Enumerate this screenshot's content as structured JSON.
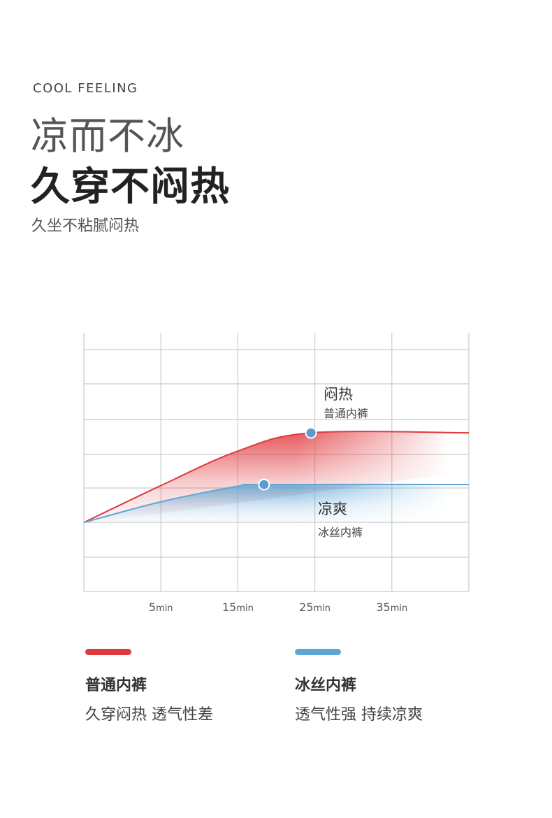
{
  "header": {
    "eyebrow": "COOL FEELING",
    "title_line1": "凉而不冰",
    "title_line2": "久穿不闷热",
    "subtitle": "久坐不粘腻闷热"
  },
  "chart_data": {
    "type": "area",
    "x_ticks": [
      {
        "value": 5,
        "num": "5",
        "unit": "min"
      },
      {
        "value": 15,
        "num": "15",
        "unit": "min"
      },
      {
        "value": 25,
        "num": "25",
        "unit": "min"
      },
      {
        "value": 35,
        "num": "35",
        "unit": "min"
      }
    ],
    "xlim": [
      -5,
      45
    ],
    "ylim": [
      0,
      7.5
    ],
    "grid": true,
    "series": [
      {
        "name": "普通内裤",
        "color": "#e0393e",
        "x": [
          -5,
          5,
          15,
          24.5,
          45
        ],
        "y": [
          2,
          3.07,
          4.07,
          4.6,
          4.6
        ],
        "marker_at": 3,
        "label_main": "闷热",
        "label_sub": "普通内裤"
      },
      {
        "name": "冰丝内裤",
        "color": "#5fa6d6",
        "x": [
          -5,
          5,
          15,
          18.4,
          45
        ],
        "y": [
          2,
          2.6,
          3.05,
          3.1,
          3.1
        ],
        "marker_at": 3,
        "label_main": "凉爽",
        "label_sub": "冰丝内裤"
      }
    ]
  },
  "legend": [
    {
      "name": "普通内裤",
      "desc": "久穿闷热 透气性差",
      "color": "#e0393e"
    },
    {
      "name": "冰丝内裤",
      "desc": "透气性强  持续凉爽",
      "color": "#5fa6d6"
    }
  ]
}
